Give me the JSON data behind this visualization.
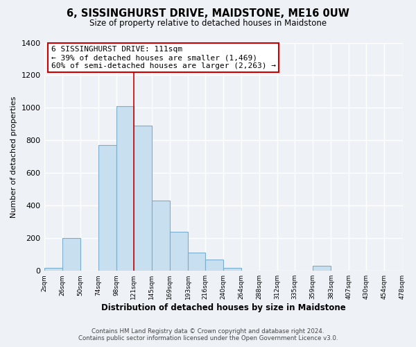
{
  "title": "6, SISSINGHURST DRIVE, MAIDSTONE, ME16 0UW",
  "subtitle": "Size of property relative to detached houses in Maidstone",
  "xlabel": "Distribution of detached houses by size in Maidstone",
  "ylabel": "Number of detached properties",
  "bar_color": "#c8dff0",
  "bar_edge_color": "#7aadcc",
  "bins": [
    2,
    26,
    50,
    74,
    98,
    121,
    145,
    169,
    193,
    216,
    240,
    264,
    288,
    312,
    335,
    359,
    383,
    407,
    430,
    454,
    478
  ],
  "bin_labels": [
    "2sqm",
    "26sqm",
    "50sqm",
    "74sqm",
    "98sqm",
    "121sqm",
    "145sqm",
    "169sqm",
    "193sqm",
    "216sqm",
    "240sqm",
    "264sqm",
    "288sqm",
    "312sqm",
    "335sqm",
    "359sqm",
    "383sqm",
    "407sqm",
    "430sqm",
    "454sqm",
    "478sqm"
  ],
  "counts": [
    20,
    200,
    0,
    770,
    1010,
    890,
    430,
    240,
    110,
    70,
    20,
    0,
    0,
    0,
    0,
    30,
    0,
    0,
    0,
    0
  ],
  "ylim": [
    0,
    1400
  ],
  "yticks": [
    0,
    200,
    400,
    600,
    800,
    1000,
    1200,
    1400
  ],
  "property_line_x": 121,
  "annotation_line1": "6 SISSINGHURST DRIVE: 111sqm",
  "annotation_line2": "← 39% of detached houses are smaller (1,469)",
  "annotation_line3": "60% of semi-detached houses are larger (2,263) →",
  "annotation_box_color": "#ffffff",
  "annotation_box_edgecolor": "#cc0000",
  "footer_line1": "Contains HM Land Registry data © Crown copyright and database right 2024.",
  "footer_line2": "Contains public sector information licensed under the Open Government Licence v3.0.",
  "background_color": "#eef2f7",
  "grid_color": "#ffffff"
}
